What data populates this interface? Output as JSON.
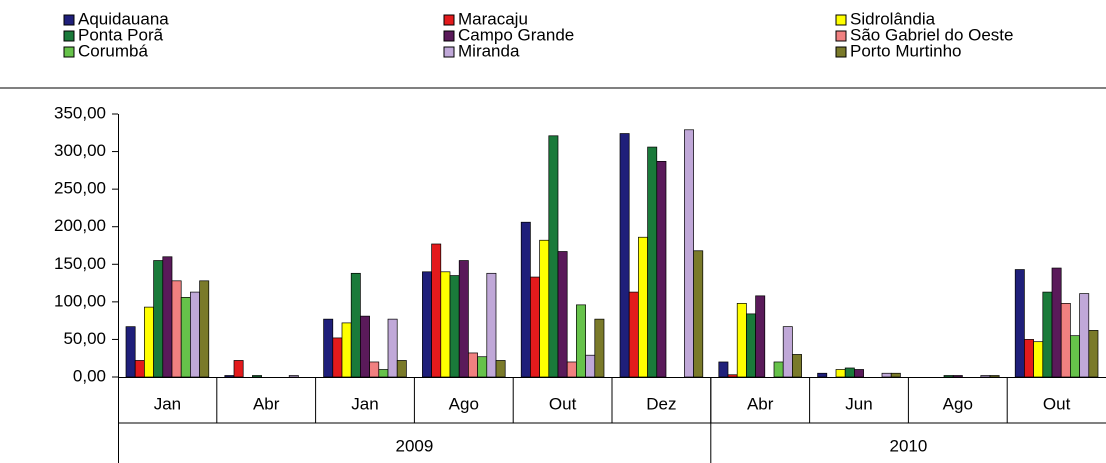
{
  "chart_data": {
    "type": "bar",
    "categories": [
      "Jan",
      "Abr",
      "Jan",
      "Ago",
      "Out",
      "Dez",
      "Abr",
      "Jun",
      "Ago",
      "Out"
    ],
    "category_groups": [
      {
        "label": "2009",
        "span": 6
      },
      {
        "label": "2010",
        "span": 4
      }
    ],
    "series": [
      {
        "name": "Aquidauana",
        "color": "#1f1f7a",
        "values": [
          67,
          2,
          77,
          140,
          206,
          324,
          20,
          5,
          0,
          143
        ]
      },
      {
        "name": "Maracaju",
        "color": "#e31a1c",
        "values": [
          22,
          22,
          52,
          177,
          133,
          113,
          3,
          0,
          0,
          50
        ]
      },
      {
        "name": "Sidrolândia",
        "color": "#ffff00",
        "values": [
          93,
          0,
          72,
          140,
          182,
          186,
          98,
          10,
          0,
          47
        ]
      },
      {
        "name": "Ponta Porã",
        "color": "#1a7a3a",
        "values": [
          155,
          2,
          138,
          135,
          321,
          306,
          84,
          12,
          2,
          113
        ]
      },
      {
        "name": "Campo Grande",
        "color": "#5a1a5a",
        "values": [
          160,
          0,
          81,
          155,
          167,
          287,
          108,
          10,
          2,
          145
        ]
      },
      {
        "name": "São Gabriel do Oeste",
        "color": "#f08080",
        "values": [
          128,
          0,
          20,
          32,
          20,
          0,
          0,
          0,
          0,
          98
        ]
      },
      {
        "name": "Corumbá",
        "color": "#66c24a",
        "values": [
          106,
          0,
          10,
          27,
          96,
          0,
          20,
          0,
          0,
          55
        ]
      },
      {
        "name": "Miranda",
        "color": "#c0a8d8",
        "values": [
          113,
          2,
          77,
          138,
          29,
          329,
          67,
          5,
          2,
          111
        ]
      },
      {
        "name": "Porto Murtinho",
        "color": "#7a7a2a",
        "values": [
          128,
          0,
          22,
          22,
          77,
          168,
          30,
          5,
          2,
          62
        ]
      }
    ],
    "ylim": [
      0,
      350
    ],
    "yticks": [
      {
        "value": 0,
        "label": "0,00"
      },
      {
        "value": 50,
        "label": "50,00"
      },
      {
        "value": 100,
        "label": "100,00"
      },
      {
        "value": 150,
        "label": "150,00"
      },
      {
        "value": 200,
        "label": "200,00"
      },
      {
        "value": 250,
        "label": "250,00"
      },
      {
        "value": 300,
        "label": "300,00"
      },
      {
        "value": 350,
        "label": "350,00"
      }
    ],
    "legend": "top"
  }
}
